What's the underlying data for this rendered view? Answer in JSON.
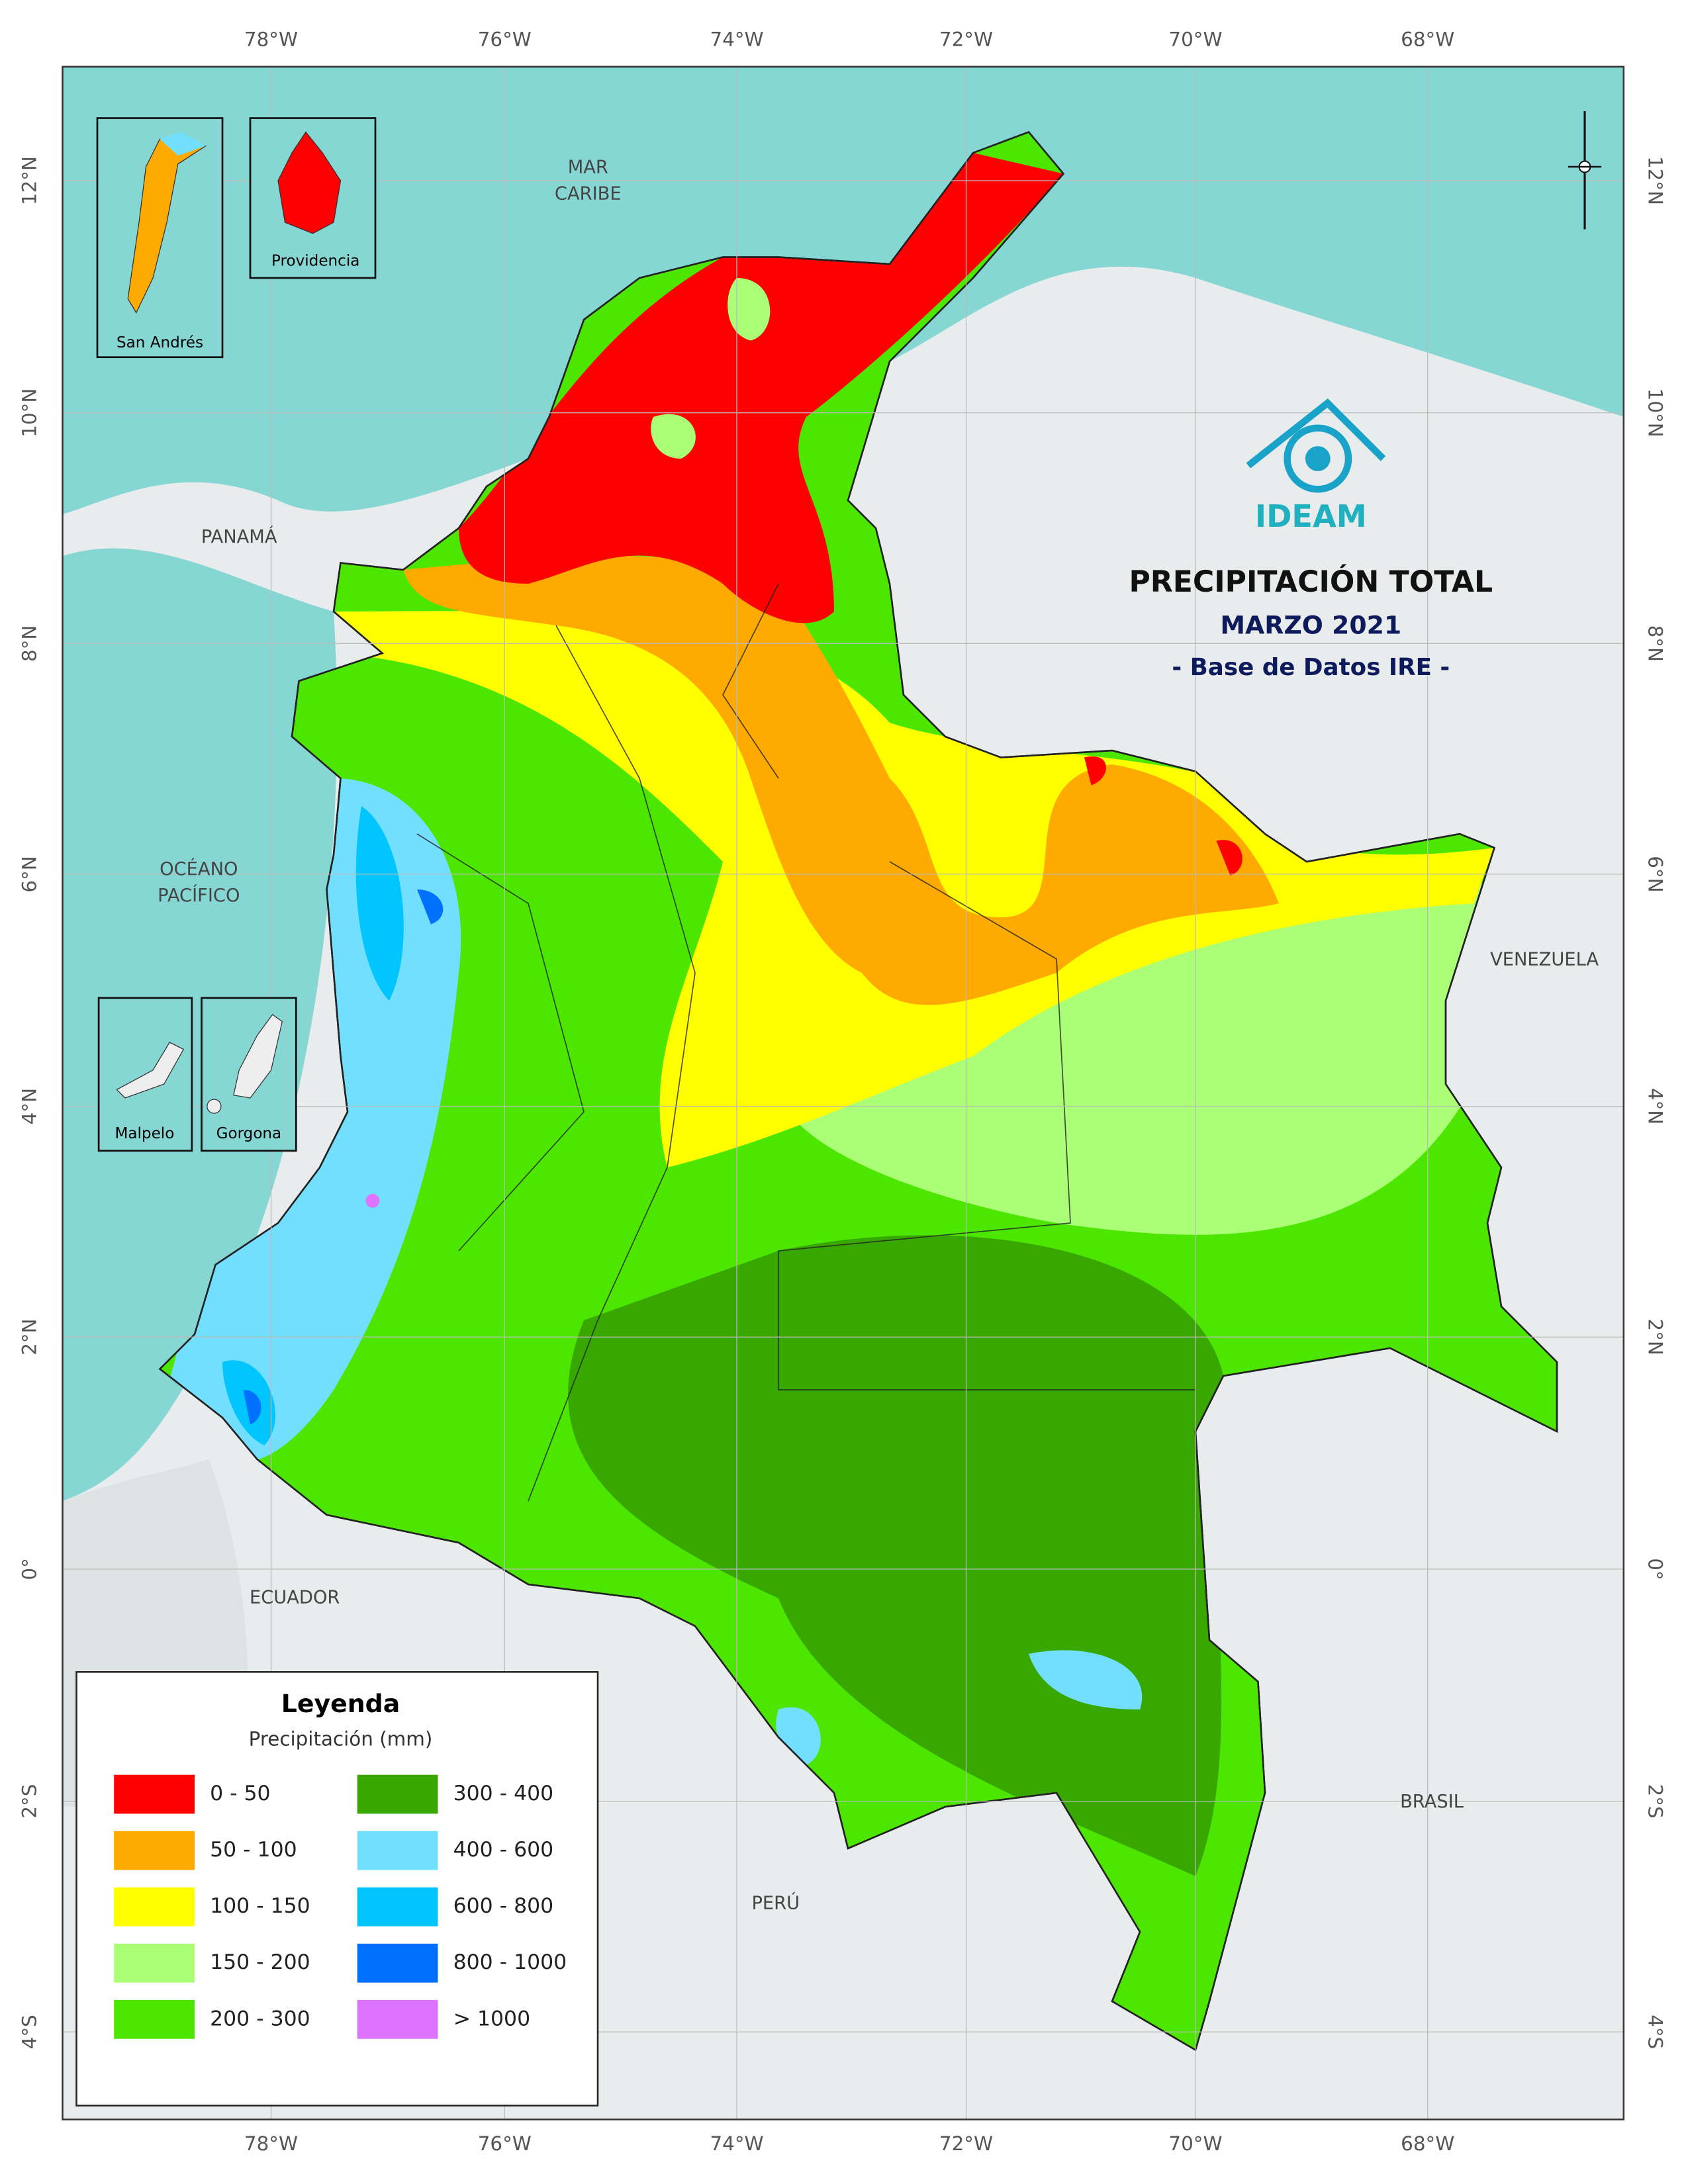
{
  "header": {
    "logo": "IDEAM",
    "title": "PRECIPITACIÓN TOTAL",
    "period": "MARZO 2021",
    "source": "- Base de Datos IRE -"
  },
  "grid": {
    "longitudes": [
      "78°W",
      "76°W",
      "74°W",
      "72°W",
      "70°W",
      "68°W"
    ],
    "latitudes": [
      "12°N",
      "10°N",
      "8°N",
      "6°N",
      "4°N",
      "2°N",
      "0°",
      "2°S",
      "4°S"
    ]
  },
  "places": [
    {
      "lines": [
        "MAR",
        "CARIBE"
      ]
    },
    {
      "lines": [
        "PANAMÁ"
      ]
    },
    {
      "lines": [
        "OCÉANO",
        "PACÍFICO"
      ]
    },
    {
      "lines": [
        "VENEZUELA"
      ]
    },
    {
      "lines": [
        "ECUADOR"
      ]
    },
    {
      "lines": [
        "BRASIL"
      ]
    },
    {
      "lines": [
        "PERÚ"
      ]
    }
  ],
  "insets": [
    "San Andrés",
    "Providencia",
    "Malpelo",
    "Gorgona"
  ],
  "legend": {
    "title": "Leyenda",
    "subtitle": "Precipitación (mm)",
    "classes": [
      {
        "label": "0 - 50",
        "color": "#ff0000"
      },
      {
        "label": "50 - 100",
        "color": "#ffaa00"
      },
      {
        "label": "100 - 150",
        "color": "#ffff00"
      },
      {
        "label": "150 - 200",
        "color": "#aaff77"
      },
      {
        "label": "200 - 300",
        "color": "#4ce600"
      },
      {
        "label": "300 - 400",
        "color": "#38a800"
      },
      {
        "label": "400 - 600",
        "color": "#73dfff"
      },
      {
        "label": "600 - 800",
        "color": "#00c5ff"
      },
      {
        "label": "800 - 1000",
        "color": "#0070ff"
      },
      {
        "label": "> 1000",
        "color": "#df73ff"
      }
    ]
  }
}
